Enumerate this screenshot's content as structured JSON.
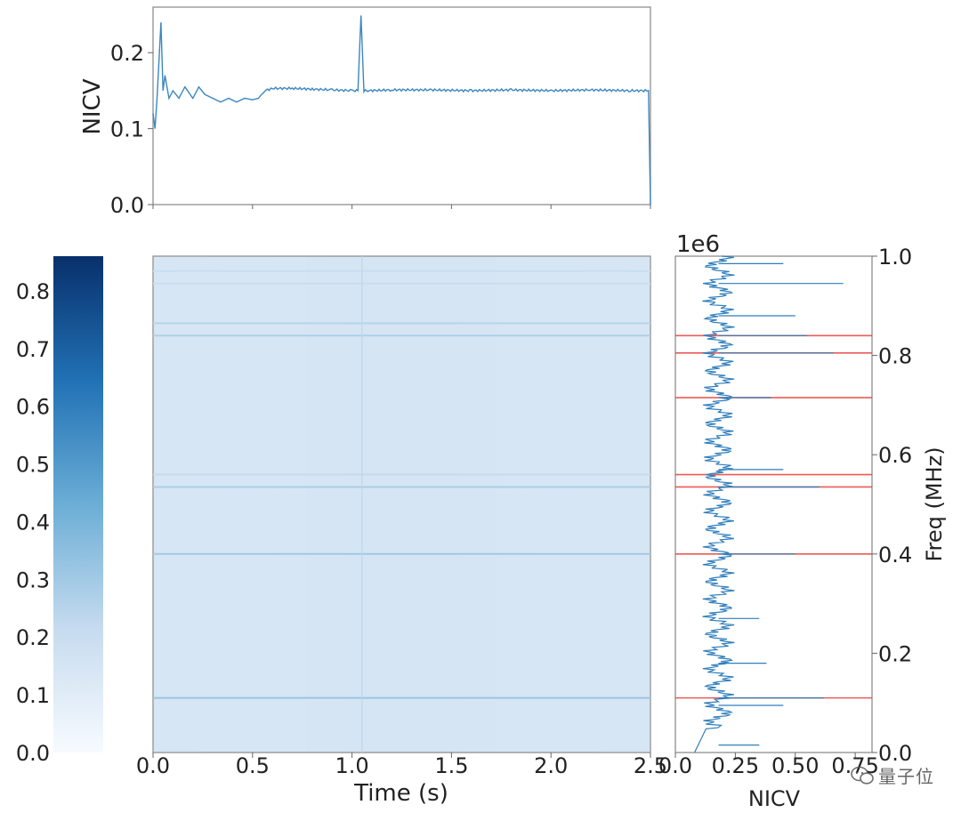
{
  "chart_data": [
    {
      "id": "top",
      "type": "line",
      "xlabel": "",
      "ylabel": "NICV",
      "xlim": [
        0,
        2.5
      ],
      "ylim": [
        0,
        0.26
      ],
      "yticks": [
        "0.0",
        "0.1",
        "0.2"
      ],
      "ytick_values": [
        0.0,
        0.1,
        0.2
      ],
      "xticks_unlabeled": [
        0.0,
        0.5,
        1.0,
        1.5,
        2.0,
        2.5
      ],
      "color": "#3b87c0",
      "x": [
        0.0,
        0.01,
        0.02,
        0.03,
        0.04,
        0.05,
        0.06,
        0.08,
        0.1,
        0.13,
        0.16,
        0.2,
        0.23,
        0.26,
        0.3,
        0.34,
        0.38,
        0.42,
        0.46,
        0.5,
        0.53,
        0.56,
        0.6,
        0.7,
        0.8,
        0.9,
        1.0,
        1.03,
        1.045,
        1.06,
        1.08,
        1.2,
        1.4,
        1.6,
        1.8,
        2.0,
        2.2,
        2.4,
        2.49,
        2.5
      ],
      "y": [
        0.12,
        0.1,
        0.14,
        0.19,
        0.24,
        0.15,
        0.17,
        0.14,
        0.15,
        0.14,
        0.155,
        0.14,
        0.155,
        0.145,
        0.14,
        0.135,
        0.14,
        0.135,
        0.14,
        0.138,
        0.14,
        0.15,
        0.153,
        0.153,
        0.152,
        0.151,
        0.15,
        0.15,
        0.25,
        0.15,
        0.15,
        0.151,
        0.151,
        0.15,
        0.151,
        0.15,
        0.151,
        0.15,
        0.15,
        0.0
      ]
    },
    {
      "id": "heatmap",
      "type": "heatmap",
      "xlabel": "Time (s)",
      "ylabel": "",
      "xlim": [
        0,
        2.5
      ],
      "ylim": [
        0,
        1000000
      ],
      "xticks": [
        "0.0",
        "0.5",
        "1.0",
        "1.5",
        "2.0",
        "2.5"
      ],
      "xtick_values": [
        0.0,
        0.5,
        1.0,
        1.5,
        2.0,
        2.5
      ],
      "background_level": 0.15,
      "bright_rows_freq": [
        970000,
        945000,
        865000,
        840000,
        560000,
        535000,
        400000,
        110000
      ],
      "bright_rows_level": [
        0.2,
        0.2,
        0.25,
        0.27,
        0.22,
        0.28,
        0.3,
        0.32
      ],
      "bright_col_time": 1.05,
      "colorbar": {
        "ticks": [
          "0.0",
          "0.1",
          "0.2",
          "0.3",
          "0.4",
          "0.5",
          "0.6",
          "0.7",
          "0.8"
        ],
        "tick_values": [
          0.0,
          0.1,
          0.2,
          0.3,
          0.4,
          0.5,
          0.6,
          0.7,
          0.8
        ],
        "vmin": 0.0,
        "vmax": 0.86,
        "colors": [
          "#f7fbff",
          "#c6dbef",
          "#6baed6",
          "#2171b5",
          "#08306b"
        ]
      }
    },
    {
      "id": "right",
      "type": "line",
      "orientation": "vertical",
      "xlabel": "NICV",
      "ylabel": "Freq (MHz)",
      "offset_label": "1e6",
      "xlim": [
        0,
        0.82
      ],
      "ylim": [
        0,
        1.0
      ],
      "xticks": [
        "0.0",
        "0.25",
        "0.50",
        "0.75"
      ],
      "xtick_values": [
        0.0,
        0.25,
        0.5,
        0.75
      ],
      "yticks": [
        "0.0",
        "0.2",
        "0.4",
        "0.6",
        "0.8",
        "1.0"
      ],
      "ytick_values": [
        0.0,
        0.2,
        0.4,
        0.6,
        0.8,
        1.0
      ],
      "color": "#2f7ebc",
      "marker_color": "#e8403a",
      "red_lines_freq": [
        0.84,
        0.805,
        0.715,
        0.56,
        0.535,
        0.4,
        0.11
      ],
      "spikes": [
        {
          "freq": 0.985,
          "value": 0.45
        },
        {
          "freq": 0.945,
          "value": 0.7
        },
        {
          "freq": 0.88,
          "value": 0.5
        },
        {
          "freq": 0.84,
          "value": 0.55
        },
        {
          "freq": 0.805,
          "value": 0.66
        },
        {
          "freq": 0.715,
          "value": 0.4
        },
        {
          "freq": 0.57,
          "value": 0.45
        },
        {
          "freq": 0.535,
          "value": 0.6
        },
        {
          "freq": 0.4,
          "value": 0.5
        },
        {
          "freq": 0.27,
          "value": 0.35
        },
        {
          "freq": 0.18,
          "value": 0.38
        },
        {
          "freq": 0.11,
          "value": 0.62
        },
        {
          "freq": 0.095,
          "value": 0.45
        },
        {
          "freq": 0.015,
          "value": 0.35
        }
      ],
      "baseline": 0.18,
      "noise": 0.08
    }
  ],
  "watermark": {
    "text": "量子位"
  }
}
